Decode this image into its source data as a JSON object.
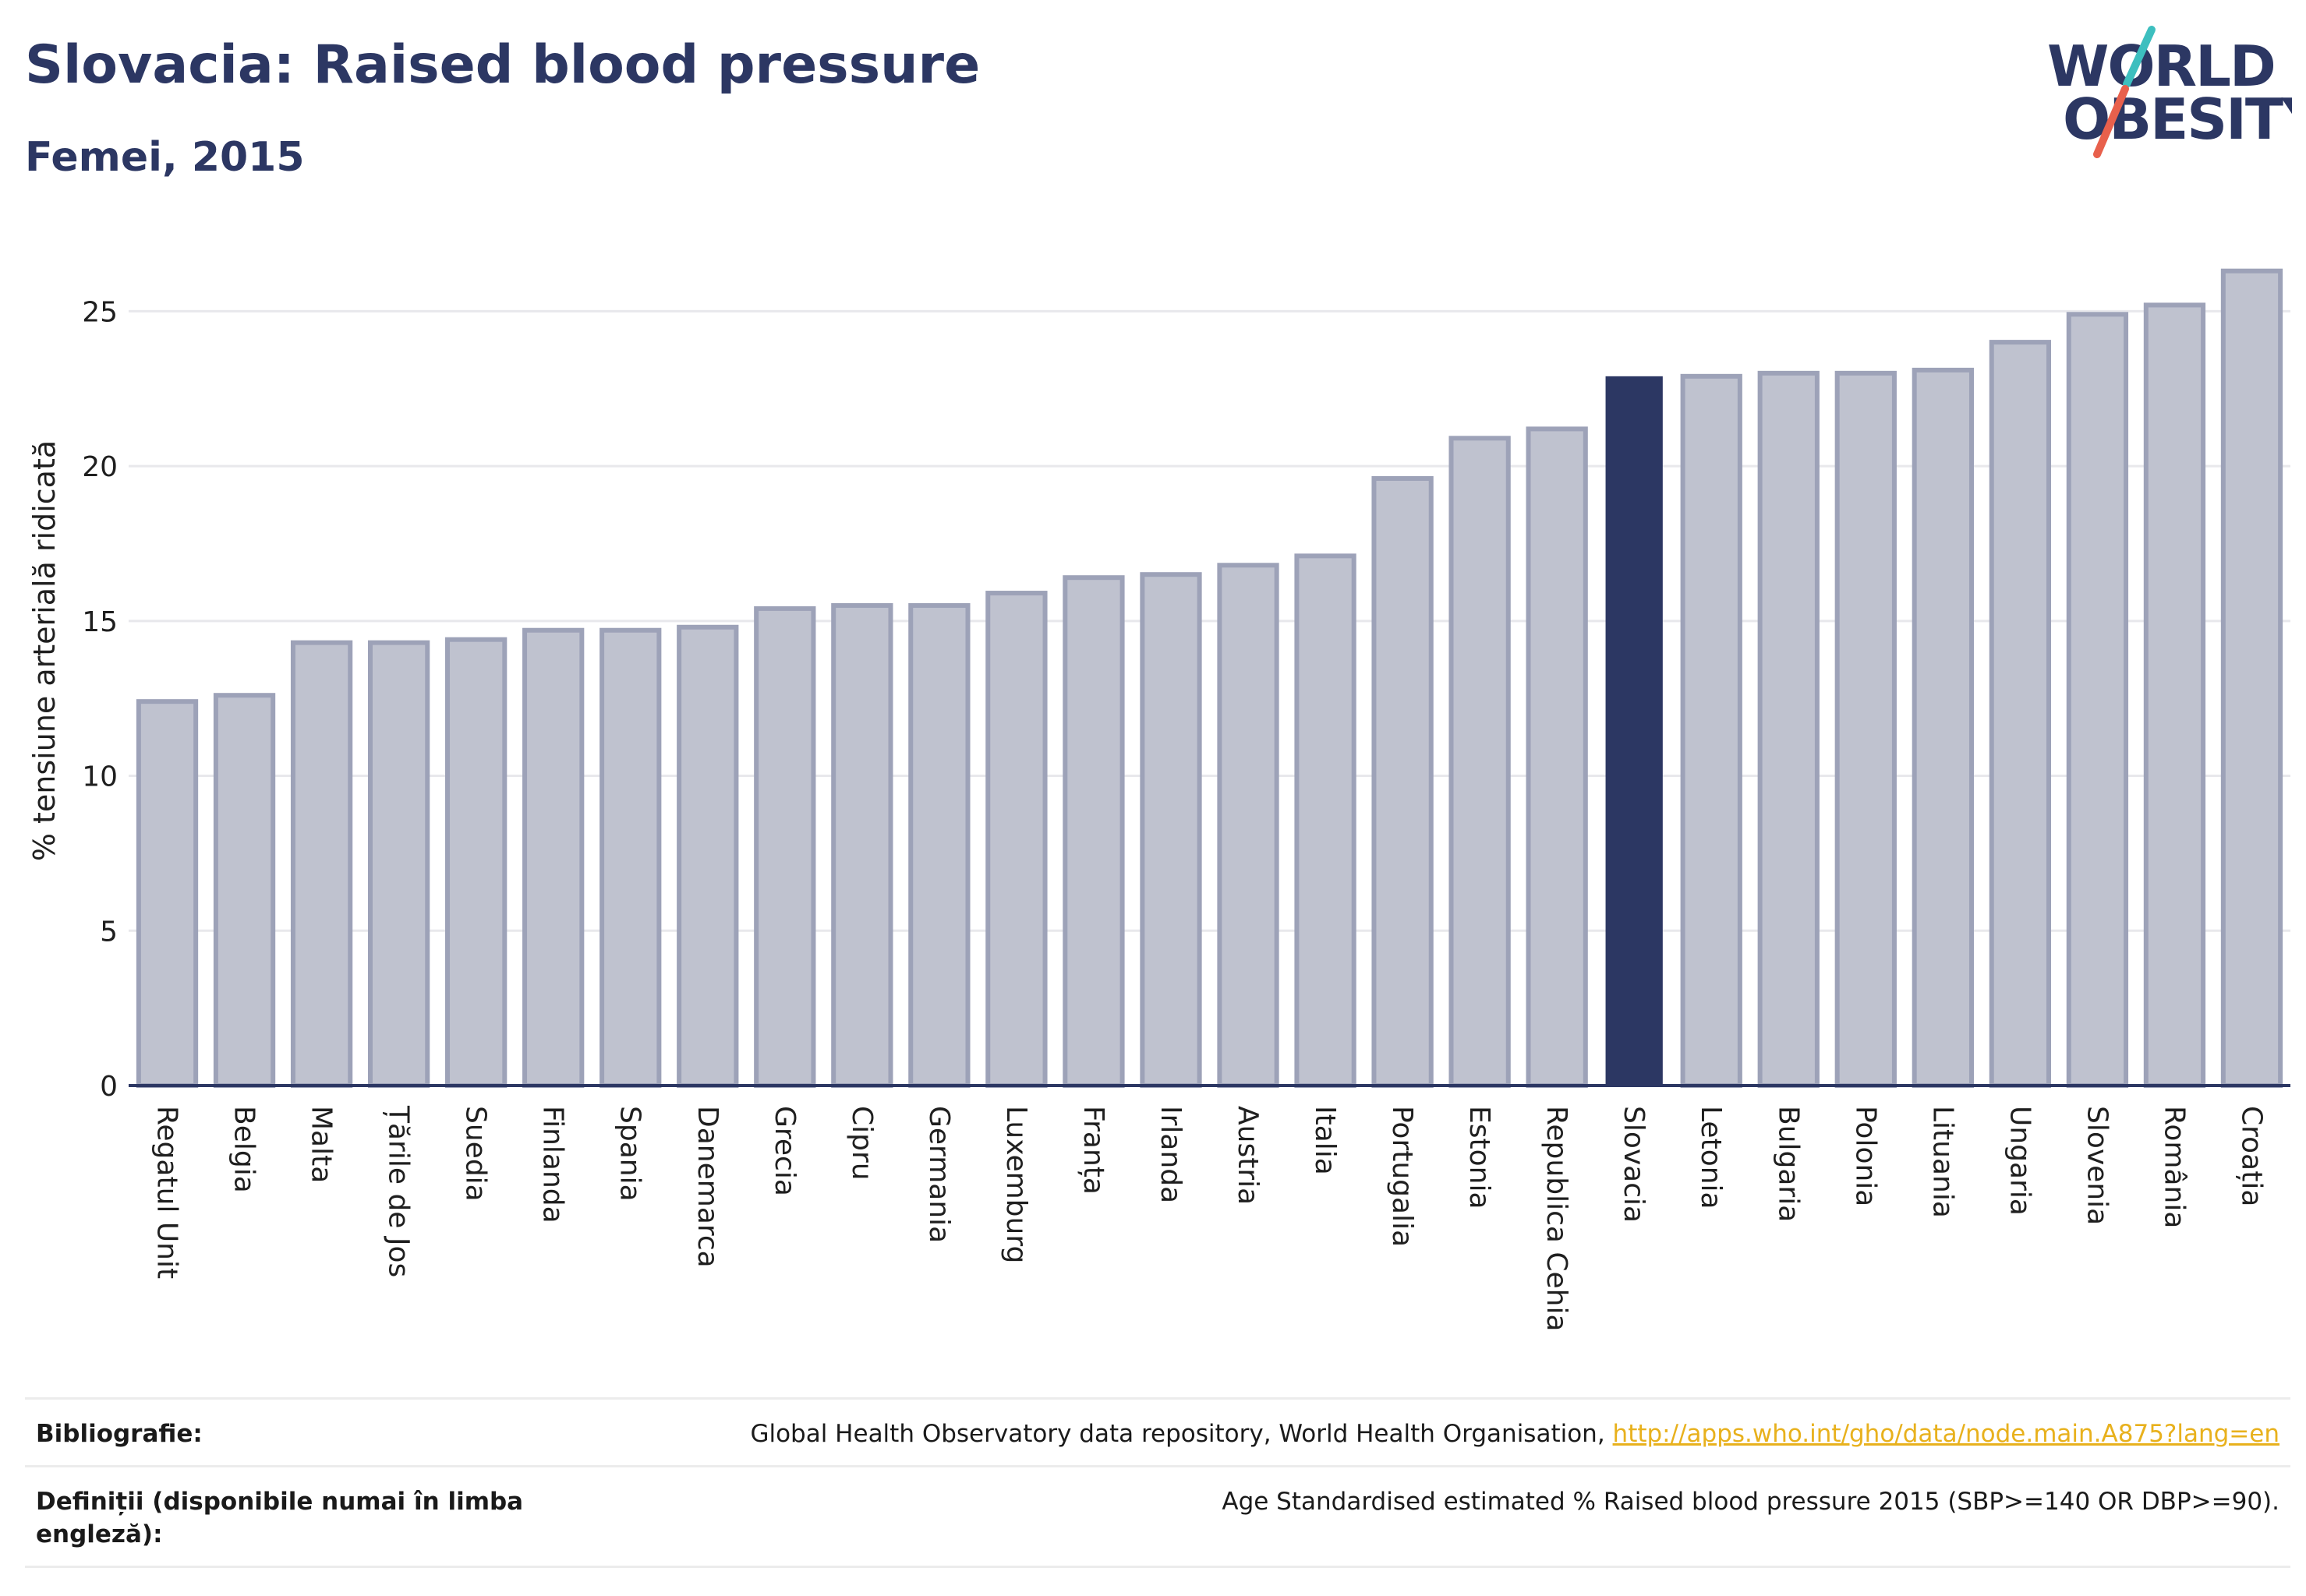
{
  "header": {
    "title": "Slovacia: Raised blood pressure",
    "subtitle": "Femei, 2015"
  },
  "logo": {
    "line1": "WORLD",
    "line2": "OBESITY",
    "colors": {
      "text": "#2c3763",
      "slash_teal": "#3dbfbf",
      "slash_red": "#e8604c"
    }
  },
  "chart_data": {
    "type": "bar",
    "title": "Slovacia: Raised blood pressure",
    "subtitle": "Femei, 2015",
    "ylabel": "% tensiune arterială ridicată",
    "xlabel": "",
    "ylim": [
      0,
      27.5
    ],
    "yticks": [
      0,
      5,
      10,
      15,
      20,
      25
    ],
    "grid": true,
    "highlight": "Slovacia",
    "colors": {
      "bar": "#bfc2cf",
      "bar_edge": "#9da2b8",
      "highlight": "#2c3763",
      "grid": "#e8e8ec",
      "axis": "#2c3763"
    },
    "categories": [
      "Regatul Unit",
      "Belgia",
      "Malta",
      "Țările de Jos",
      "Suedia",
      "Finlanda",
      "Spania",
      "Danemarca",
      "Grecia",
      "Cipru",
      "Germania",
      "Luxemburg",
      "Franța",
      "Irlanda",
      "Austria",
      "Italia",
      "Portugalia",
      "Estonia",
      "Republica Cehia",
      "Slovacia",
      "Letonia",
      "Bulgaria",
      "Polonia",
      "Lituania",
      "Ungaria",
      "Slovenia",
      "România",
      "Croația"
    ],
    "values": [
      12.4,
      12.6,
      14.3,
      14.3,
      14.4,
      14.7,
      14.7,
      14.8,
      15.4,
      15.5,
      15.5,
      15.9,
      16.4,
      16.5,
      16.8,
      17.1,
      19.6,
      20.9,
      21.2,
      22.9,
      22.9,
      23.0,
      23.0,
      23.1,
      24.0,
      24.9,
      25.2,
      26.3
    ]
  },
  "footer": {
    "bibliography_label": "Bibliografie:",
    "bibliography_text": "Global Health Observatory data repository, World Health Organisation, ",
    "bibliography_link": "http://apps.who.int/gho/data/node.main.A875?lang=en",
    "definitions_label": "Definiții (disponibile numai în limba engleză):",
    "definitions_text": "Age Standardised estimated % Raised blood pressure 2015 (SBP>=140 OR DBP>=90)."
  }
}
